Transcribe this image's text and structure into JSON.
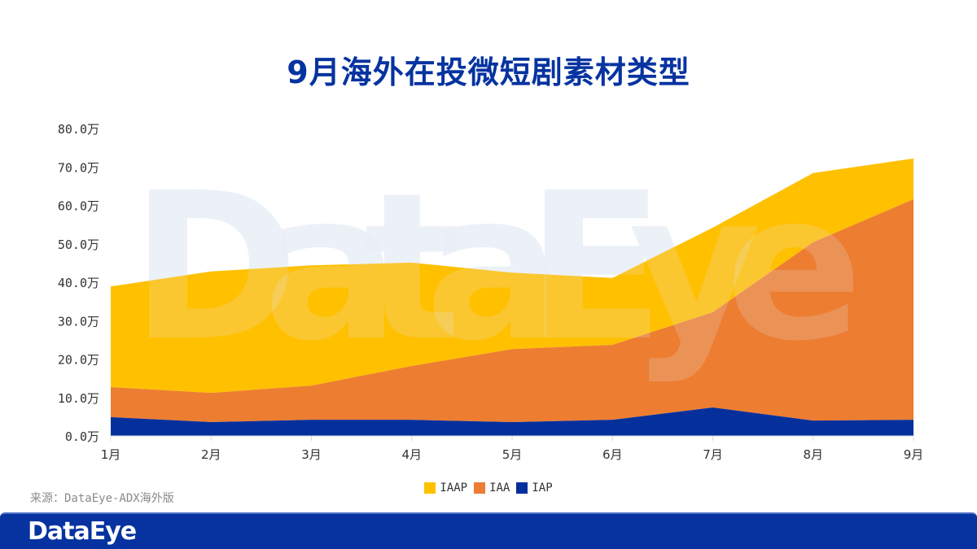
{
  "title": "9月海外在投微短剧素材类型",
  "source": "来源：DataEye-ADX海外版",
  "footer": {
    "logo_text": "DataEye"
  },
  "watermark": "DataEye",
  "colors": {
    "IAAP": "#ffc000",
    "IAA": "#ed7d31",
    "IAP": "#05309c",
    "title": "#0633a0",
    "footer": "#0633a0"
  },
  "legend": [
    {
      "name": "IAAP",
      "color": "#ffc000"
    },
    {
      "name": "IAA",
      "color": "#ed7d31"
    },
    {
      "name": "IAP",
      "color": "#05309c"
    }
  ],
  "chart_data": {
    "type": "area",
    "stacked": true,
    "title": "9月海外在投微短剧素材类型",
    "xlabel": "",
    "ylabel": "",
    "unit": "万",
    "categories": [
      "1月",
      "2月",
      "3月",
      "4月",
      "5月",
      "6月",
      "7月",
      "8月",
      "9月"
    ],
    "series": [
      {
        "name": "IAP",
        "values": [
          4.9,
          3.6,
          4.2,
          4.2,
          3.6,
          4.2,
          7.4,
          4.0,
          4.2
        ]
      },
      {
        "name": "IAA",
        "values": [
          7.8,
          7.6,
          8.9,
          14.0,
          19.0,
          19.5,
          24.8,
          46.4,
          57.4
        ]
      },
      {
        "name": "IAAP",
        "values": [
          26.2,
          31.6,
          31.3,
          26.9,
          19.9,
          17.4,
          22.0,
          18.0,
          10.6
        ]
      }
    ],
    "totals": [
      38.9,
      42.8,
      44.4,
      45.1,
      42.5,
      41.1,
      54.2,
      68.4,
      72.2
    ],
    "yticks": [
      "0.0万",
      "10.0万",
      "20.0万",
      "30.0万",
      "40.0万",
      "50.0万",
      "60.0万",
      "70.0万",
      "80.0万"
    ],
    "ylim": [
      0,
      80
    ],
    "grid": false,
    "legend_position": "bottom"
  }
}
